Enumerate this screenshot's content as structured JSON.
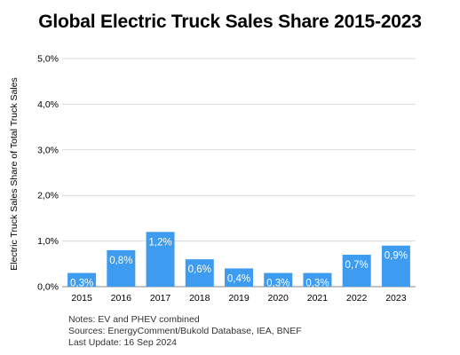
{
  "chart_data": {
    "type": "bar",
    "title": "Global Electric Truck Sales Share 2015-2023",
    "xlabel": "",
    "ylabel": "Electric Truck Sales Share of Total Truck Sales",
    "categories": [
      "2015",
      "2016",
      "2017",
      "2018",
      "2019",
      "2020",
      "2021",
      "2022",
      "2023"
    ],
    "values": [
      0.3,
      0.8,
      1.2,
      0.6,
      0.4,
      0.3,
      0.3,
      0.7,
      0.9
    ],
    "value_labels": [
      "0,3%",
      "0,8%",
      "1,2%",
      "0,6%",
      "0,4%",
      "0,3%",
      "0,3%",
      "0,7%",
      "0,9%"
    ],
    "ylim": [
      0,
      5
    ],
    "yticks": [
      0,
      1,
      2,
      3,
      4,
      5
    ],
    "ytick_labels": [
      "0,0%",
      "1,0%",
      "2,0%",
      "3,0%",
      "4,0%",
      "5,0%"
    ],
    "grid": true,
    "bar_color": "#3d9bf0",
    "grid_color": "#d9d9d9",
    "notes": [
      "Notes: EV and PHEV combined",
      "Sources: EnergyComment/Bukold Database, IEA, BNEF",
      "Last Update: 16 Sep 2024"
    ]
  }
}
